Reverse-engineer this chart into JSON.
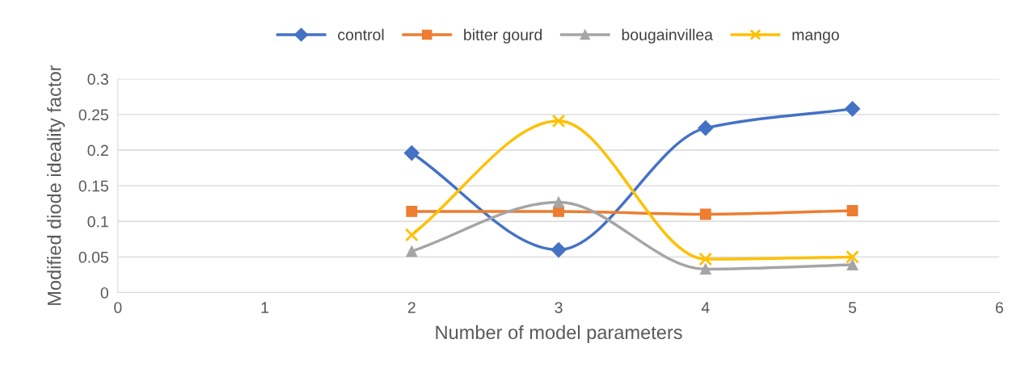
{
  "chart_data": {
    "type": "line",
    "xlabel": "Number of model parameters",
    "ylabel": "Modified diode ideality factor",
    "x": [
      2,
      3,
      4,
      5
    ],
    "series": [
      {
        "name": "control",
        "color": "#4472c4",
        "marker": "diamond",
        "values": [
          0.196,
          0.06,
          0.231,
          0.258
        ]
      },
      {
        "name": "bitter gourd",
        "color": "#ed7d31",
        "marker": "square",
        "values": [
          0.114,
          0.114,
          0.11,
          0.115
        ]
      },
      {
        "name": "bougainvillea",
        "color": "#a5a5a5",
        "marker": "triangle",
        "values": [
          0.058,
          0.127,
          0.033,
          0.039
        ]
      },
      {
        "name": "mango",
        "color": "#ffc000",
        "marker": "cross",
        "values": [
          0.081,
          0.241,
          0.047,
          0.05
        ]
      }
    ],
    "xlim": [
      0,
      6
    ],
    "xticks": [
      0,
      1,
      2,
      3,
      4,
      5,
      6
    ],
    "ylim": [
      0,
      0.3
    ],
    "yticks": [
      0,
      0.05,
      0.1,
      0.15,
      0.2,
      0.25,
      0.3
    ],
    "grid": "y",
    "legend": "top",
    "line_style": "solid"
  }
}
